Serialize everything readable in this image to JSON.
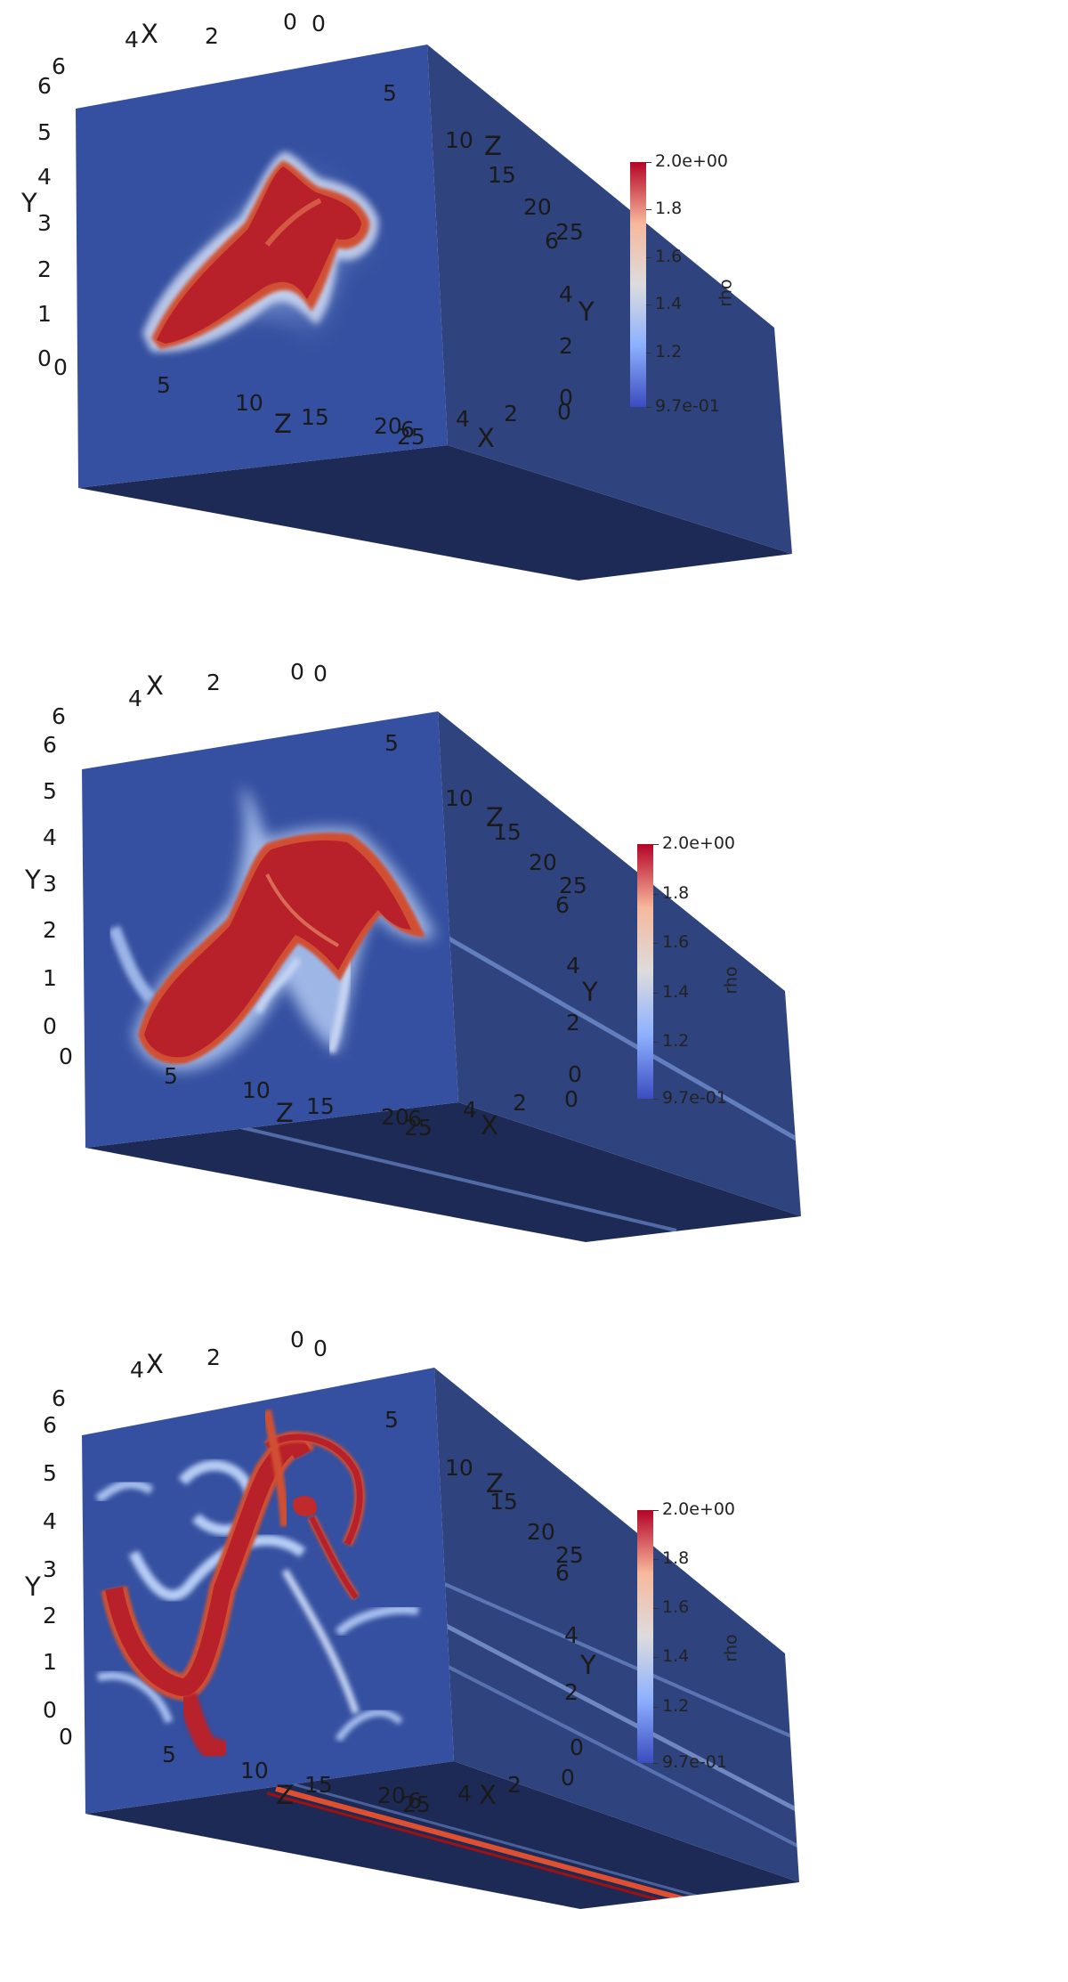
{
  "axes": {
    "front_x": [
      "6",
      "4",
      "2",
      "0"
    ],
    "front_y": [
      "6",
      "5",
      "4",
      "3",
      "2",
      "1",
      "0"
    ],
    "bottom_z": [
      "0",
      "5",
      "10",
      "15",
      "20",
      "25"
    ],
    "top_z": [
      "0",
      "5",
      "10",
      "15",
      "20",
      "25"
    ],
    "side_y": [
      "6",
      "4",
      "2",
      "0"
    ],
    "back_x": [
      "6",
      "4",
      "2",
      "0"
    ],
    "x_name": "X",
    "y_name": "Y",
    "z_name": "Z"
  },
  "colorbar": {
    "title": "rho",
    "max_label": "2.0e+00",
    "min_label": "9.7e-01",
    "ticks": [
      "1.8",
      "1.6",
      "1.4",
      "1.2"
    ],
    "colors": [
      "#b40426",
      "#f7b89c",
      "#dddcdc",
      "#8db0fe",
      "#3b4cc0"
    ]
  },
  "panels": [
    {
      "id": "panel-1",
      "description": ""
    },
    {
      "id": "panel-2",
      "description": ""
    },
    {
      "id": "panel-3",
      "description": ""
    }
  ]
}
